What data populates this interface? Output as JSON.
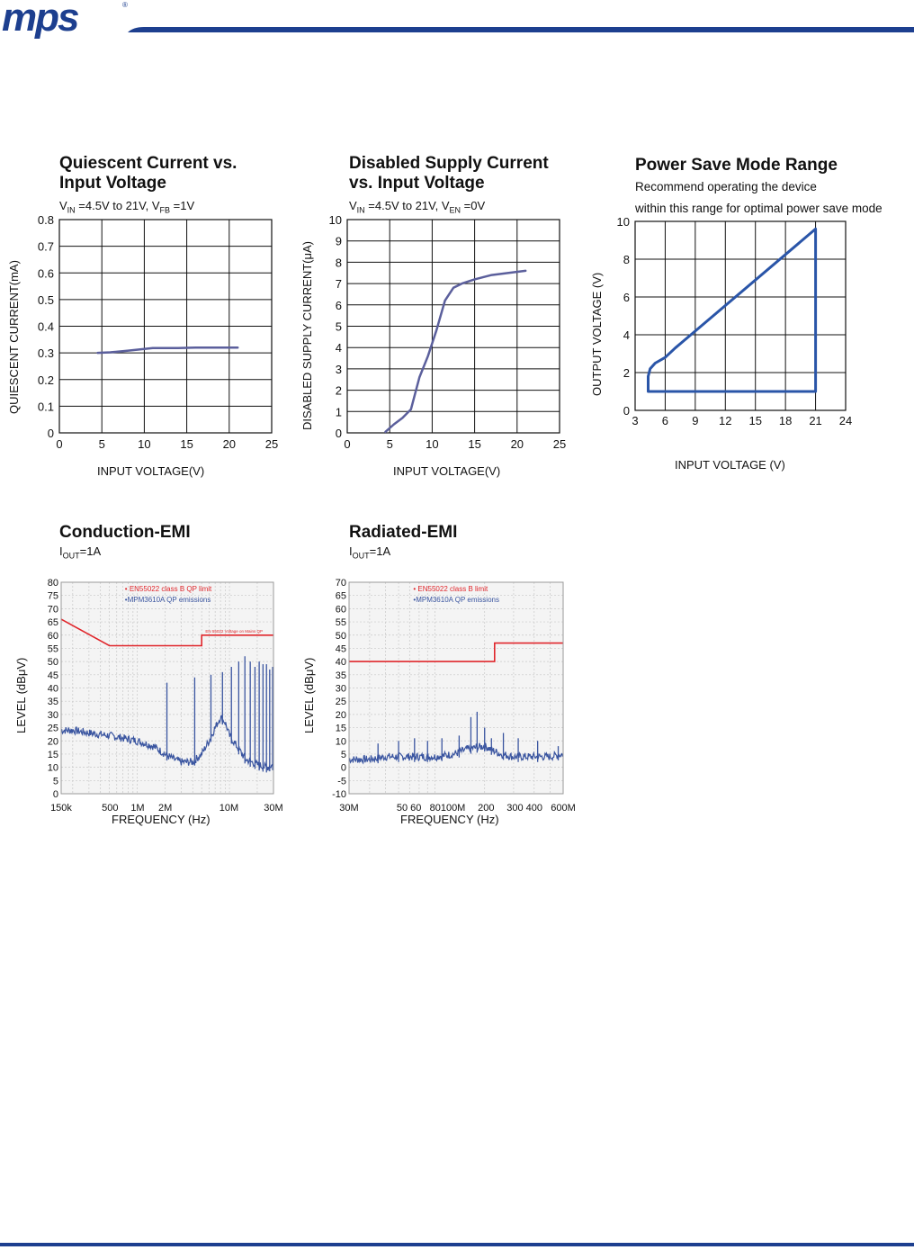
{
  "header": {
    "logo_text": "mps",
    "registered_mark": "®",
    "brand_color": "#1d3f8f",
    "rule_color": "#1d3f8f"
  },
  "colors": {
    "curve": "#5b5f9c",
    "region": "#2a55a8",
    "limit": "#e0262b",
    "emission": "#3a55a0",
    "grid": "#111111"
  },
  "chart_data": [
    {
      "id": "quiescent",
      "type": "line",
      "title_line1": "Quiescent Current vs.",
      "title_line2": "Input Voltage",
      "condition": {
        "a": "V",
        "a_sub": "IN",
        "b": " =4.5V to 21V, V",
        "b_sub": "FB",
        "c": " =1V"
      },
      "xlabel": "INPUT VOLTAGE(V)",
      "ylabel": "QUIESCENT CURRENT(mA)",
      "xlim": [
        0,
        25
      ],
      "ylim": [
        0,
        0.8
      ],
      "xticks": [
        "0",
        "5",
        "10",
        "15",
        "20",
        "25"
      ],
      "yticks": [
        "0",
        "0.1",
        "0.2",
        "0.3",
        "0.4",
        "0.5",
        "0.6",
        "0.7",
        "0.8"
      ],
      "x": [
        4.5,
        6,
        8,
        10,
        11,
        12,
        14,
        16,
        18,
        21
      ],
      "y": [
        0.3,
        0.302,
        0.308,
        0.315,
        0.318,
        0.318,
        0.318,
        0.32,
        0.32,
        0.32
      ]
    },
    {
      "id": "disabled",
      "type": "line",
      "title_line1": "Disabled Supply Current",
      "title_line2": "vs. Input Voltage",
      "condition": {
        "a": "V",
        "a_sub": "IN",
        "b": " =4.5V to 21V, V",
        "b_sub": "EN",
        "c": " =0V"
      },
      "xlabel": "INPUT VOLTAGE(V)",
      "ylabel": "DISABLED SUPPLY CURRENT(μA)",
      "xlim": [
        0,
        25
      ],
      "ylim": [
        0,
        10
      ],
      "xticks": [
        "0",
        "5",
        "10",
        "15",
        "20",
        "25"
      ],
      "yticks": [
        "0",
        "1",
        "2",
        "3",
        "4",
        "5",
        "6",
        "7",
        "8",
        "9",
        "10"
      ],
      "x": [
        4.5,
        5.5,
        6.5,
        7.5,
        8.5,
        9.5,
        10.5,
        11.5,
        12.5,
        13.5,
        15,
        17,
        19,
        21
      ],
      "y": [
        0.05,
        0.4,
        0.7,
        1.1,
        2.6,
        3.6,
        4.8,
        6.2,
        6.8,
        7.0,
        7.2,
        7.4,
        7.5,
        7.6
      ]
    },
    {
      "id": "psm",
      "type": "area",
      "title_line1": "Power Save Mode Range",
      "subtitle_line1": "Recommend operating the device",
      "subtitle_line2": "within this range for optimal power save mode",
      "xlabel": "INPUT VOLTAGE (V)",
      "ylabel": "OUTPUT VOLTAGE (V)",
      "xlim": [
        3,
        24
      ],
      "ylim": [
        0,
        10
      ],
      "xticks": [
        "3",
        "6",
        "9",
        "12",
        "15",
        "18",
        "21",
        "24"
      ],
      "yticks": [
        "0",
        "2",
        "4",
        "6",
        "8",
        "10"
      ],
      "x": [
        4.3,
        4.3,
        4.5,
        5.0,
        6.0,
        7.0,
        21.0,
        21.0,
        4.3
      ],
      "y": [
        1.0,
        1.8,
        2.2,
        2.5,
        2.8,
        3.3,
        9.6,
        1.0,
        1.0
      ]
    },
    {
      "id": "conduction",
      "type": "line",
      "title_line1": "Conduction-EMI",
      "condition": {
        "a": "I",
        "a_sub": "OUT",
        "b": "=1A"
      },
      "xlabel": "FREQUENCY (Hz)",
      "ylabel": "LEVEL (dBμV)",
      "xscale": "log",
      "xlim": [
        150000,
        30000000
      ],
      "ylim": [
        0,
        80
      ],
      "xticks": [
        "150k",
        "500",
        "1M",
        "2M",
        "10M",
        "30M"
      ],
      "yticks": [
        "0",
        "5",
        "10",
        "15",
        "20",
        "25",
        "30",
        "35",
        "40",
        "45",
        "50",
        "55",
        "60",
        "65",
        "70",
        "75",
        "80"
      ],
      "legend": [
        "• EN55022 class B QP limit",
        "•MPM3610A QP emissions"
      ],
      "limit_note": "EN 55022 Voltage on Mains QP",
      "series": [
        {
          "name": "EN55022 class B QP limit",
          "x": [
            150000,
            500000,
            5000000,
            5000000,
            30000000
          ],
          "y": [
            66,
            56,
            56,
            60,
            60
          ]
        },
        {
          "name": "MPM3610A QP emissions",
          "x": [
            150000,
            200000,
            300000,
            500000,
            1000000,
            1500000,
            2000000,
            2500000,
            3000000,
            4000000,
            5000000,
            6000000,
            7000000,
            8000000,
            9000000,
            10000000,
            12000000,
            15000000,
            20000000,
            25000000,
            30000000
          ],
          "y": [
            24,
            24,
            23,
            22,
            20,
            18,
            15,
            13,
            12,
            12,
            15,
            20,
            25,
            29,
            27,
            22,
            18,
            13,
            11,
            10,
            11
          ]
        }
      ],
      "spikes": {
        "x": [
          2100000,
          4200000,
          6300000,
          8400000,
          10500000,
          12600000,
          14700000,
          16800000,
          18900000,
          21000000,
          23100000,
          25200000,
          27300000,
          29400000
        ],
        "y": [
          42,
          44,
          45,
          46,
          48,
          50,
          52,
          50,
          48,
          50,
          49,
          49,
          47,
          48
        ]
      }
    },
    {
      "id": "radiated",
      "type": "line",
      "title_line1": "Radiated-EMI",
      "condition": {
        "a": "I",
        "a_sub": "OUT",
        "b": "=1A"
      },
      "xlabel": "FREQUENCY (Hz)",
      "ylabel": "LEVEL (dBμV)",
      "xscale": "log",
      "xlim": [
        30000000,
        600000000
      ],
      "ylim": [
        -10,
        70
      ],
      "xticks": [
        "30M",
        "50 60",
        "80100M",
        "200",
        "300 400",
        "600M"
      ],
      "yticks": [
        "-10",
        "-5",
        "0",
        "5",
        "10",
        "15",
        "20",
        "25",
        "30",
        "35",
        "40",
        "45",
        "50",
        "55",
        "60",
        "65",
        "70"
      ],
      "legend": [
        "• EN55022 class B limit",
        "•MPM3610A QP emissions"
      ],
      "series": [
        {
          "name": "EN55022 class B limit",
          "x": [
            30000000,
            230000000,
            230000000,
            600000000
          ],
          "y": [
            40,
            40,
            47,
            47
          ]
        },
        {
          "name": "MPM3610A QP emissions",
          "x": [
            30000000,
            40000000,
            50000000,
            70000000,
            100000000,
            130000000,
            160000000,
            200000000,
            250000000,
            300000000,
            400000000,
            500000000,
            600000000
          ],
          "y": [
            3,
            3,
            4,
            4,
            4,
            5,
            7,
            8,
            5,
            4,
            4,
            4,
            5
          ]
        }
      ],
      "spikes": {
        "x": [
          45000000,
          60000000,
          75000000,
          90000000,
          110000000,
          140000000,
          165000000,
          180000000,
          200000000,
          220000000,
          260000000,
          320000000,
          420000000,
          560000000
        ],
        "y": [
          9,
          10,
          11,
          10,
          11,
          12,
          19,
          21,
          15,
          11,
          13,
          11,
          10,
          8
        ]
      }
    }
  ]
}
